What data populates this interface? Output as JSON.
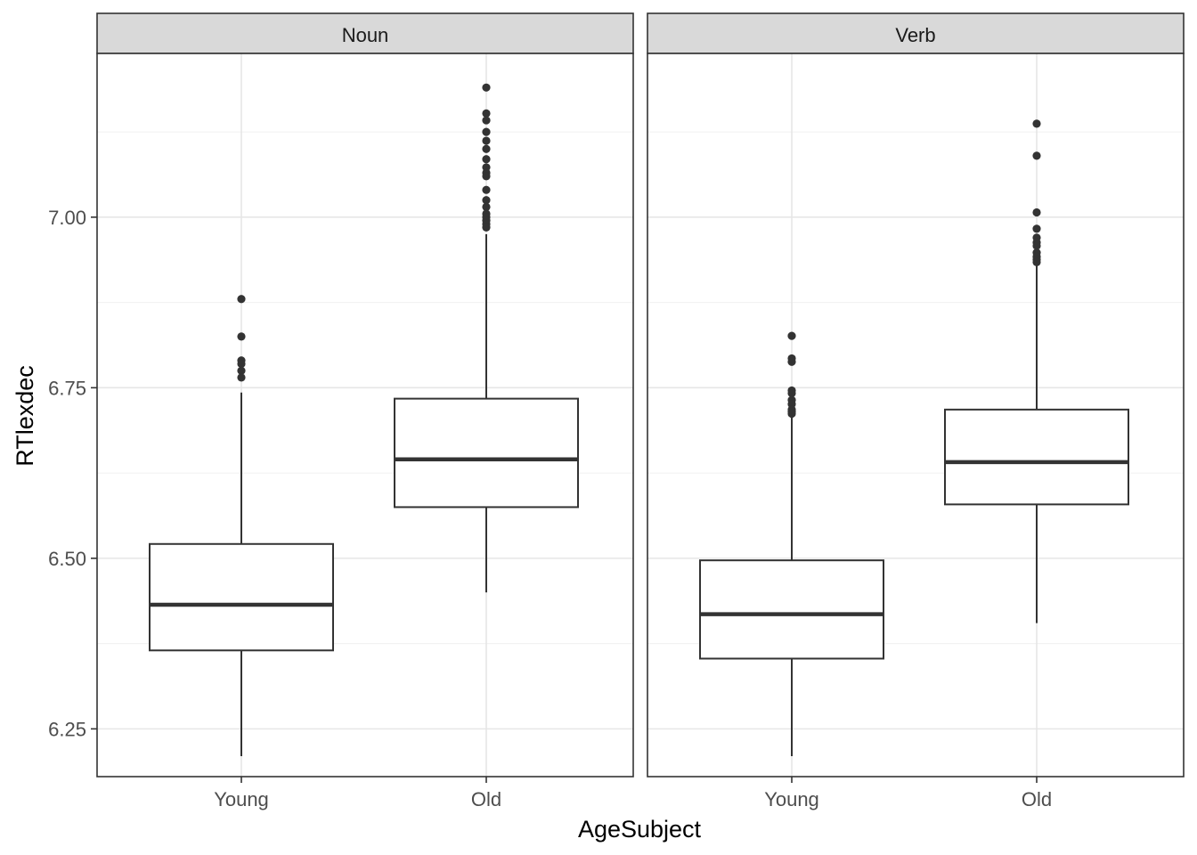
{
  "chart_data": {
    "type": "boxplot",
    "xlabel": "AgeSubject",
    "ylabel": "RTlexdec",
    "ylim": [
      6.18,
      7.24
    ],
    "y_ticks": [
      6.25,
      6.5,
      6.75,
      7.0
    ],
    "y_tick_labels": [
      "6.25",
      "6.50",
      "6.75",
      "7.00"
    ],
    "categories": [
      "Young",
      "Old"
    ],
    "grid": true,
    "facet_variable_levels": [
      "Noun",
      "Verb"
    ],
    "facets": [
      {
        "label": "Noun",
        "boxes": [
          {
            "category": "Young",
            "lower_whisker": 6.21,
            "q1": 6.365,
            "median": 6.432,
            "q3": 6.521,
            "upper_whisker": 6.743,
            "outliers": [
              6.88,
              6.825,
              6.79,
              6.785,
              6.775,
              6.765
            ]
          },
          {
            "category": "Old",
            "lower_whisker": 6.45,
            "q1": 6.575,
            "median": 6.645,
            "q3": 6.734,
            "upper_whisker": 6.975,
            "outliers": [
              7.19,
              7.152,
              7.142,
              7.125,
              7.112,
              7.1,
              7.085,
              7.073,
              7.065,
              7.06,
              7.04,
              7.025,
              7.015,
              7.005,
              7.0,
              6.995,
              6.99,
              6.985
            ]
          }
        ]
      },
      {
        "label": "Verb",
        "boxes": [
          {
            "category": "Young",
            "lower_whisker": 6.21,
            "q1": 6.353,
            "median": 6.418,
            "q3": 6.497,
            "upper_whisker": 6.71,
            "outliers": [
              6.826,
              6.793,
              6.788,
              6.746,
              6.742,
              6.732,
              6.726,
              6.718,
              6.715,
              6.712
            ]
          },
          {
            "category": "Old",
            "lower_whisker": 6.405,
            "q1": 6.579,
            "median": 6.641,
            "q3": 6.718,
            "upper_whisker": 6.93,
            "outliers": [
              7.137,
              7.09,
              7.007,
              6.983,
              6.97,
              6.963,
              6.958,
              6.948,
              6.942,
              6.938,
              6.934
            ]
          }
        ]
      }
    ]
  }
}
